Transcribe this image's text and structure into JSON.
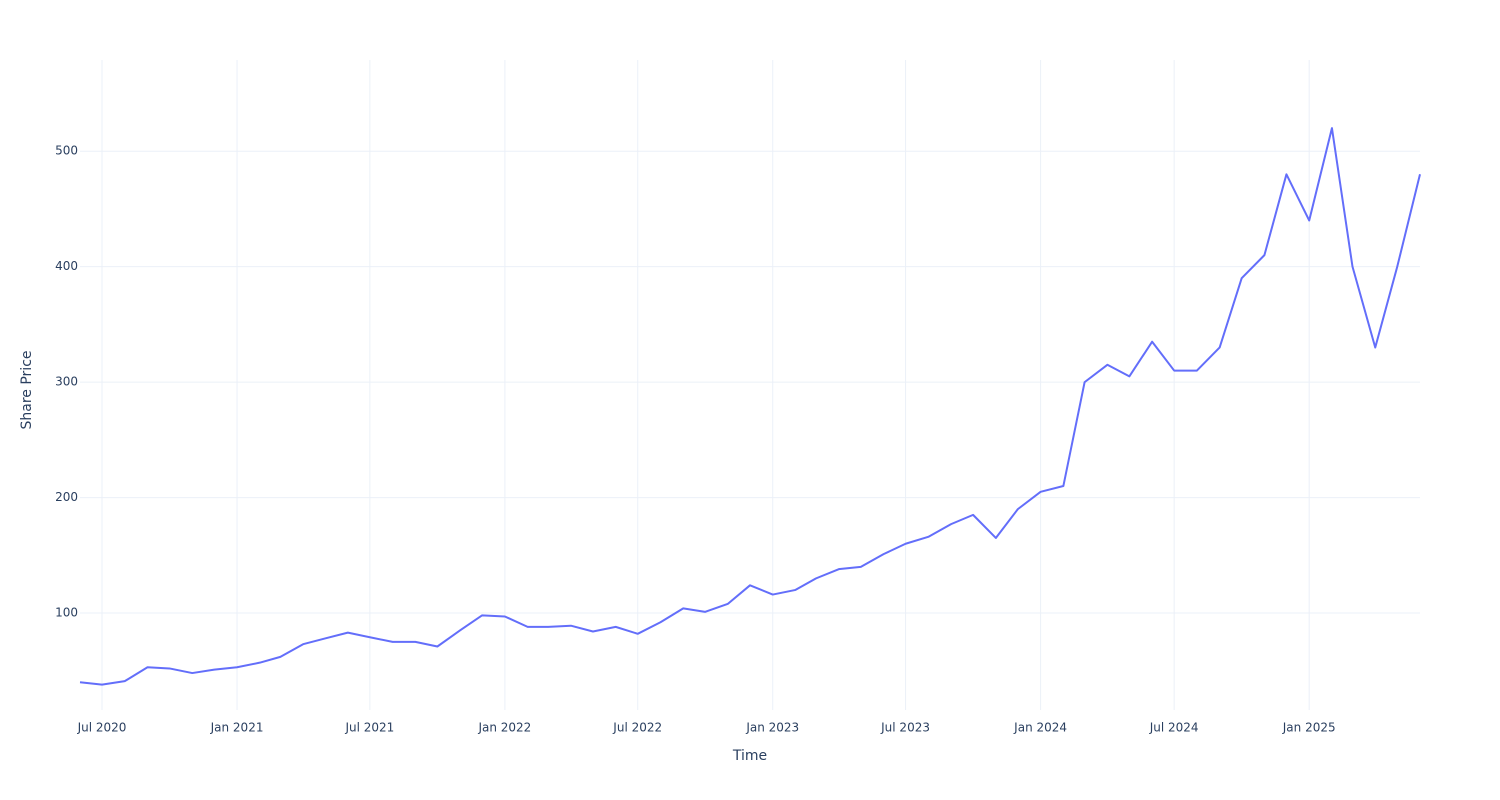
{
  "chart_data": {
    "type": "line",
    "x_label": "Time",
    "y_label": "Share Price",
    "color": "#636efa",
    "grid": true,
    "x": [
      "2020-06",
      "2020-07",
      "2020-08",
      "2020-09",
      "2020-10",
      "2020-11",
      "2020-12",
      "2021-01",
      "2021-02",
      "2021-03",
      "2021-04",
      "2021-05",
      "2021-06",
      "2021-07",
      "2021-08",
      "2021-09",
      "2021-10",
      "2021-11",
      "2021-12",
      "2022-01",
      "2022-02",
      "2022-03",
      "2022-04",
      "2022-05",
      "2022-06",
      "2022-07",
      "2022-08",
      "2022-09",
      "2022-10",
      "2022-11",
      "2022-12",
      "2023-01",
      "2023-02",
      "2023-03",
      "2023-04",
      "2023-05",
      "2023-06",
      "2023-07",
      "2023-08",
      "2023-09",
      "2023-10",
      "2023-11",
      "2023-12",
      "2024-01",
      "2024-02",
      "2024-03",
      "2024-04",
      "2024-05",
      "2024-06",
      "2024-07",
      "2024-08",
      "2024-09",
      "2024-10",
      "2024-11",
      "2024-12",
      "2025-01",
      "2025-02",
      "2025-03",
      "2025-04",
      "2025-05",
      "2025-06"
    ],
    "values": [
      40,
      38,
      41,
      53,
      52,
      48,
      51,
      53,
      57,
      62,
      73,
      78,
      83,
      79,
      75,
      75,
      71,
      85,
      98,
      97,
      88,
      88,
      89,
      84,
      88,
      82,
      92,
      104,
      101,
      108,
      124,
      116,
      120,
      130,
      138,
      140,
      151,
      160,
      166,
      177,
      185,
      165,
      190,
      205,
      210,
      300,
      315,
      305,
      335,
      310,
      310,
      330,
      390,
      410,
      480,
      440,
      520,
      400,
      330,
      400,
      480
    ],
    "xlim": [
      "2020-06",
      "2025-06"
    ],
    "xticks": [
      {
        "value": "2020-07",
        "label": "Jul 2020"
      },
      {
        "value": "2021-01",
        "label": "Jan 2021"
      },
      {
        "value": "2021-07",
        "label": "Jul 2021"
      },
      {
        "value": "2022-01",
        "label": "Jan 2022"
      },
      {
        "value": "2022-07",
        "label": "Jul 2022"
      },
      {
        "value": "2023-01",
        "label": "Jan 2023"
      },
      {
        "value": "2023-07",
        "label": "Jul 2023"
      },
      {
        "value": "2024-01",
        "label": "Jan 2024"
      },
      {
        "value": "2024-07",
        "label": "Jul 2024"
      },
      {
        "value": "2025-01",
        "label": "Jan 2025"
      }
    ],
    "ylim": [
      16,
      579
    ],
    "yticks": [
      100,
      200,
      300,
      400,
      500
    ]
  }
}
